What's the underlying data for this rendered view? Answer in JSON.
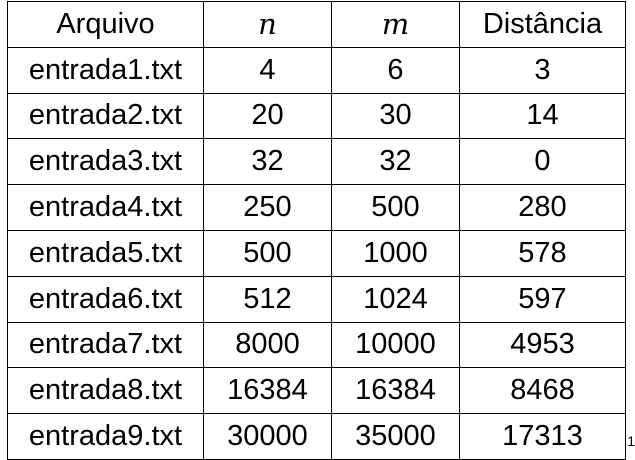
{
  "table": {
    "headers": {
      "file": "Arquivo",
      "n": "n",
      "m": "m",
      "distance": "Distância"
    },
    "rows": [
      {
        "file": "entrada1.txt",
        "n": "4",
        "m": "6",
        "distance": "3"
      },
      {
        "file": "entrada2.txt",
        "n": "20",
        "m": "30",
        "distance": "14"
      },
      {
        "file": "entrada3.txt",
        "n": "32",
        "m": "32",
        "distance": "0"
      },
      {
        "file": "entrada4.txt",
        "n": "250",
        "m": "500",
        "distance": "280"
      },
      {
        "file": "entrada5.txt",
        "n": "500",
        "m": "1000",
        "distance": "578"
      },
      {
        "file": "entrada6.txt",
        "n": "512",
        "m": "1024",
        "distance": "597"
      },
      {
        "file": "entrada7.txt",
        "n": "8000",
        "m": "10000",
        "distance": "4953"
      },
      {
        "file": "entrada8.txt",
        "n": "16384",
        "m": "16384",
        "distance": "8468"
      },
      {
        "file": "entrada9.txt",
        "n": "30000",
        "m": "35000",
        "distance": "17313"
      }
    ]
  },
  "edge_fragment": "1"
}
